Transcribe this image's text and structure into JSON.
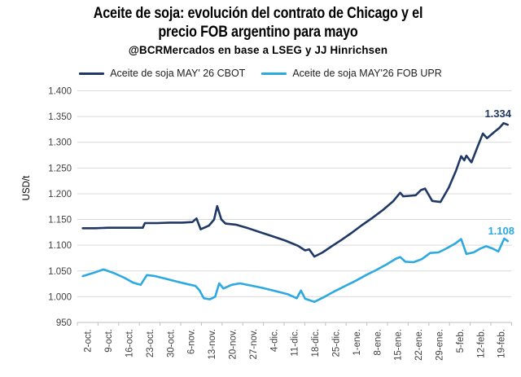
{
  "chart_data": {
    "type": "line",
    "title": "Aceite de soja: evolución del contrato de Chicago y el precio FOB argentino para mayo",
    "title_lines": [
      "Aceite de soja: evolución del contrato de Chicago y el",
      "precio FOB argentino para mayo"
    ],
    "subtitle": "@BCRMercados en base a LSEG y JJ Hinrichsen",
    "ylabel": "USD/t",
    "xlabel": "",
    "ylim": [
      950,
      1400
    ],
    "grid": "horizontal",
    "legend_position": "top",
    "grid_color": "#d9d9d9",
    "axis_color": "#bfbfbf",
    "tick_label_color": "#404040",
    "y_ticks": [
      {
        "v": 950,
        "label": "950"
      },
      {
        "v": 1000,
        "label": "1.000"
      },
      {
        "v": 1050,
        "label": "1.050"
      },
      {
        "v": 1100,
        "label": "1.100"
      },
      {
        "v": 1150,
        "label": "1.150"
      },
      {
        "v": 1200,
        "label": "1.200"
      },
      {
        "v": 1250,
        "label": "1.250"
      },
      {
        "v": 1300,
        "label": "1.300"
      },
      {
        "v": 1350,
        "label": "1.350"
      },
      {
        "v": 1400,
        "label": "1.400"
      }
    ],
    "x_tick_labels": [
      "2-oct.",
      "9-oct.",
      "16-oct.",
      "23-oct.",
      "30-oct.",
      "6-nov.",
      "13-nov.",
      "20-nov.",
      "27-nov.",
      "4-dic.",
      "11-dic.",
      "18-dic.",
      "25-dic.",
      "1-ene.",
      "8-ene.",
      "15-ene.",
      "22-ene.",
      "29-ene.",
      "5-feb.",
      "12-feb.",
      "19-feb."
    ],
    "x_unit": "weeks_from_2_oct",
    "series": [
      {
        "name": "Aceite de soja MAY' 26 CBOT",
        "color": "#1f3864",
        "end_label": "1.334",
        "last_value": 1334,
        "points": [
          [
            0,
            1133
          ],
          [
            0.6,
            1133
          ],
          [
            1.2,
            1134
          ],
          [
            1.8,
            1134
          ],
          [
            2.4,
            1134
          ],
          [
            2.9,
            1134
          ],
          [
            3.0,
            1143
          ],
          [
            3.6,
            1143
          ],
          [
            4.2,
            1144
          ],
          [
            4.8,
            1144
          ],
          [
            5.3,
            1145
          ],
          [
            5.5,
            1152
          ],
          [
            5.7,
            1131
          ],
          [
            6.1,
            1138
          ],
          [
            6.35,
            1150
          ],
          [
            6.5,
            1176
          ],
          [
            6.7,
            1150
          ],
          [
            6.9,
            1142
          ],
          [
            7.4,
            1140
          ],
          [
            8,
            1133
          ],
          [
            8.6,
            1125
          ],
          [
            9.2,
            1117
          ],
          [
            9.8,
            1109
          ],
          [
            10.4,
            1099
          ],
          [
            10.75,
            1090
          ],
          [
            10.95,
            1092
          ],
          [
            11.2,
            1078
          ],
          [
            11.6,
            1086
          ],
          [
            12,
            1097
          ],
          [
            12.5,
            1110
          ],
          [
            13,
            1124
          ],
          [
            13.5,
            1139
          ],
          [
            14,
            1153
          ],
          [
            14.5,
            1168
          ],
          [
            15,
            1185
          ],
          [
            15.35,
            1202
          ],
          [
            15.5,
            1195
          ],
          [
            15.8,
            1196
          ],
          [
            16.1,
            1197
          ],
          [
            16.35,
            1207
          ],
          [
            16.55,
            1210
          ],
          [
            16.9,
            1186
          ],
          [
            17.3,
            1184
          ],
          [
            17.7,
            1212
          ],
          [
            18.05,
            1245
          ],
          [
            18.3,
            1273
          ],
          [
            18.45,
            1265
          ],
          [
            18.55,
            1274
          ],
          [
            18.8,
            1261
          ],
          [
            19.1,
            1292
          ],
          [
            19.35,
            1317
          ],
          [
            19.55,
            1308
          ],
          [
            19.9,
            1320
          ],
          [
            20.15,
            1328
          ],
          [
            20.35,
            1337
          ],
          [
            20.55,
            1334
          ]
        ]
      },
      {
        "name": "Aceite de soja MAY'26 FOB UPR",
        "color": "#2da9e1",
        "end_label": "1.108",
        "last_value": 1108,
        "points": [
          [
            0,
            1040
          ],
          [
            0.5,
            1046
          ],
          [
            1,
            1053
          ],
          [
            1.5,
            1046
          ],
          [
            2,
            1037
          ],
          [
            2.45,
            1027
          ],
          [
            2.8,
            1023
          ],
          [
            3.1,
            1042
          ],
          [
            3.5,
            1040
          ],
          [
            4,
            1035
          ],
          [
            4.6,
            1029
          ],
          [
            5.1,
            1024
          ],
          [
            5.45,
            1021
          ],
          [
            5.65,
            1012
          ],
          [
            5.85,
            997
          ],
          [
            6.15,
            995
          ],
          [
            6.4,
            1000
          ],
          [
            6.6,
            1026
          ],
          [
            6.8,
            1016
          ],
          [
            7.2,
            1023
          ],
          [
            7.6,
            1026
          ],
          [
            8.1,
            1022
          ],
          [
            8.7,
            1017
          ],
          [
            9.3,
            1011
          ],
          [
            9.9,
            1005
          ],
          [
            10.35,
            997
          ],
          [
            10.55,
            1012
          ],
          [
            10.75,
            996
          ],
          [
            11.2,
            990
          ],
          [
            11.7,
            1000
          ],
          [
            12.2,
            1011
          ],
          [
            12.7,
            1021
          ],
          [
            13.2,
            1031
          ],
          [
            13.7,
            1042
          ],
          [
            14.2,
            1052
          ],
          [
            14.7,
            1063
          ],
          [
            15.15,
            1074
          ],
          [
            15.35,
            1077
          ],
          [
            15.6,
            1068
          ],
          [
            16,
            1067
          ],
          [
            16.4,
            1073
          ],
          [
            16.8,
            1085
          ],
          [
            17.2,
            1086
          ],
          [
            17.6,
            1094
          ],
          [
            18,
            1103
          ],
          [
            18.3,
            1112
          ],
          [
            18.55,
            1083
          ],
          [
            18.9,
            1086
          ],
          [
            19.2,
            1093
          ],
          [
            19.5,
            1098
          ],
          [
            19.8,
            1094
          ],
          [
            20.1,
            1088
          ],
          [
            20.38,
            1113
          ],
          [
            20.55,
            1108
          ]
        ]
      }
    ]
  }
}
